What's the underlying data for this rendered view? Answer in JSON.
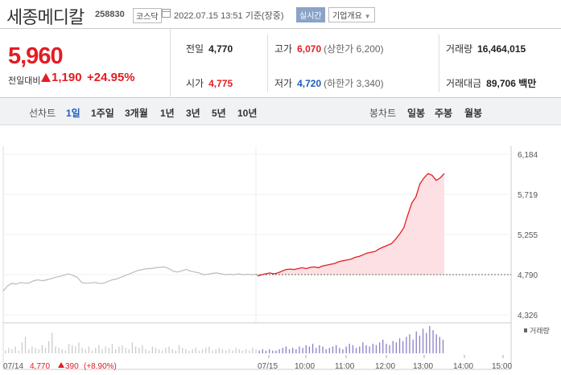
{
  "header": {
    "name": "세종메디칼",
    "code": "258830",
    "market": "코스닥",
    "date": "2022.07.15 13:51 기준(장중)",
    "realtime": "실시간",
    "company_info": "기업개요"
  },
  "quote": {
    "price": "5,960",
    "prev_label": "전일대비",
    "change": "1,190",
    "change_pct": "+24.95%",
    "prev_close_label": "전일",
    "prev_close": "4,770",
    "high_label": "고가",
    "high": "6,070",
    "upper_limit": "(상한가 6,200)",
    "volume_label": "거래량",
    "volume": "16,464,015",
    "open_label": "시가",
    "open": "4,775",
    "low_label": "저가",
    "low": "4,720",
    "lower_limit": "(하한가 3,340)",
    "amount_label": "거래대금",
    "amount": "89,706 백만"
  },
  "tabs": {
    "line_label": "선차트",
    "line_periods": [
      "1일",
      "1주일",
      "3개월",
      "1년",
      "3년",
      "5년",
      "10년"
    ],
    "candle_label": "봉차트",
    "candle_periods": [
      "일봉",
      "주봉",
      "월봉"
    ]
  },
  "chart_data": {
    "type": "line",
    "y_ticks": [
      "6,184",
      "5,719",
      "5,255",
      "4,790",
      "4,326"
    ],
    "ylim": [
      4326,
      6184
    ],
    "reference_value": 4790,
    "x_ticks": [
      "07/15",
      "10:00",
      "11:00",
      "12:00",
      "13:00",
      "14:00",
      "15:00"
    ],
    "prev_day_info": {
      "date": "07/14",
      "close": "4,770",
      "change": "390",
      "pct": "(+8.90%)"
    },
    "volume_label": "거래량",
    "series": [
      {
        "values": [
          4600,
          4660,
          4690,
          4680,
          4700,
          4690,
          4695,
          4720,
          4730,
          4720,
          4730,
          4745,
          4760,
          4770,
          4785,
          4800,
          4780,
          4760,
          4700,
          4690,
          4695,
          4700,
          4690,
          4690,
          4710,
          4730,
          4740,
          4760,
          4780,
          4800,
          4820,
          4840,
          4850,
          4860,
          4860,
          4870,
          4875,
          4880,
          4860,
          4830,
          4820,
          4835,
          4850,
          4830,
          4820,
          4810,
          4790,
          4795,
          4805,
          4810,
          4800,
          4790,
          4795,
          4790,
          4800,
          4790,
          4795,
          4790,
          4795
        ]
      },
      {
        "values": [
          4775,
          4790,
          4800,
          4810,
          4800,
          4810,
          4830,
          4850,
          4855,
          4850,
          4860,
          4870,
          4860,
          4875,
          4880,
          4870,
          4890,
          4900,
          4910,
          4920,
          4940,
          4950,
          4960,
          4970,
          4990,
          5000,
          5020,
          5040,
          5050,
          5060,
          5090,
          5110,
          5130,
          5150,
          5200,
          5260,
          5330,
          5480,
          5620,
          5690,
          5840,
          5910,
          5960,
          5940,
          5880,
          5910,
          5960
        ]
      }
    ],
    "volume_bars": [
      2,
      4,
      3,
      5,
      2,
      8,
      12,
      3,
      5,
      4,
      3,
      6,
      4,
      9,
      15,
      5,
      4,
      3,
      2,
      7,
      6,
      5,
      8,
      4,
      3,
      5,
      2,
      4,
      6,
      3,
      5,
      4,
      7,
      3,
      5,
      6,
      4,
      3,
      8,
      5,
      4,
      6,
      3,
      2,
      5,
      4,
      3,
      2,
      4,
      5,
      3,
      2,
      6,
      4,
      3,
      2,
      3,
      4,
      2,
      3,
      4,
      5,
      2,
      3,
      4,
      3,
      2,
      3,
      2,
      4,
      3,
      2,
      3,
      2,
      4,
      3,
      2,
      3,
      2,
      3,
      2,
      2,
      3,
      4,
      5,
      3,
      4,
      3,
      5,
      4,
      6,
      5,
      7,
      4,
      6,
      5,
      3,
      4,
      5,
      6,
      4,
      3,
      5,
      7,
      6,
      4,
      5,
      8,
      6,
      5,
      7,
      6,
      8,
      10,
      7,
      6,
      9,
      8,
      11,
      9,
      12,
      14,
      10,
      16,
      13,
      18,
      15,
      20,
      17,
      14,
      12,
      10
    ]
  }
}
